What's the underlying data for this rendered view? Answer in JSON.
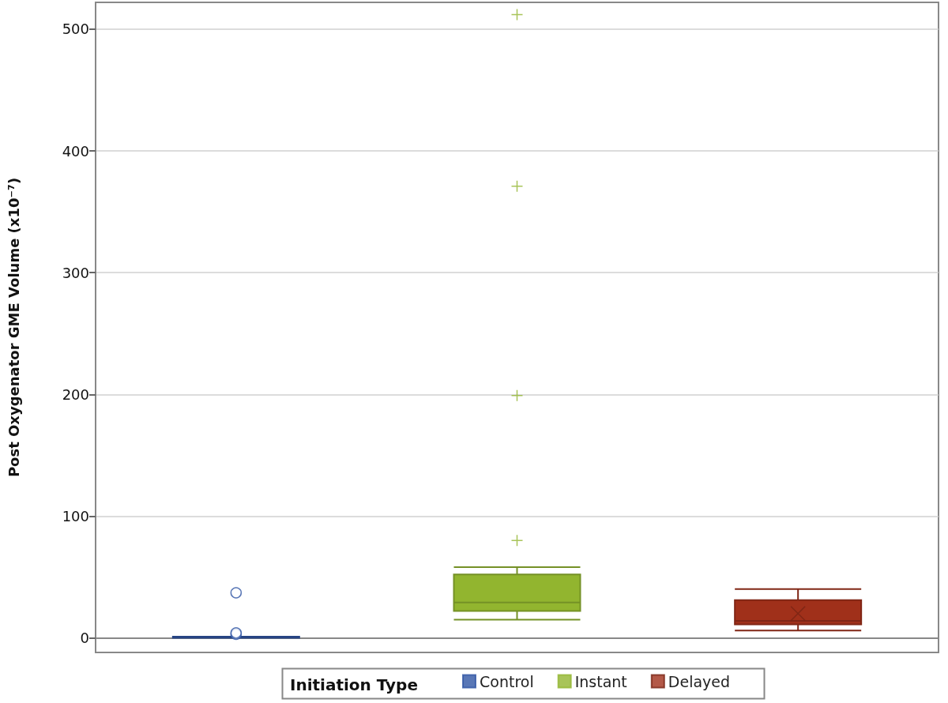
{
  "chart_data": {
    "type": "box",
    "ylabel": "Post Oxygenator GME Volume (x10⁻⁷)",
    "legend_title": "Initiation Type",
    "categories": [
      null,
      null,
      null
    ],
    "series": [
      {
        "name": "Control",
        "color": "#2f55a4",
        "marker": "circle",
        "boxes": [
          {
            "low": 0,
            "q1": 0,
            "median": 0,
            "q3": 1,
            "high": 1,
            "outliers": [
              3,
              4,
              37
            ]
          },
          null,
          null
        ]
      },
      {
        "name": "Instant",
        "color": "#92b52f",
        "marker": "cross",
        "boxes": [
          null,
          {
            "low": 15,
            "q1": 22,
            "median": 29,
            "q3": 52,
            "high": 58,
            "outliers": [
              80,
              199,
              371,
              512
            ]
          },
          null
        ]
      },
      {
        "name": "Delayed",
        "color": "#a0301a",
        "boxes": [
          null,
          null,
          {
            "low": 6,
            "q1": 11,
            "median": 14,
            "q3": 31,
            "high": 40,
            "mean": 20
          }
        ]
      }
    ],
    "ylim": [
      -12,
      522
    ],
    "yticks": [
      0,
      100,
      200,
      300,
      400,
      500
    ],
    "grid": "y",
    "legend": "bottom"
  }
}
